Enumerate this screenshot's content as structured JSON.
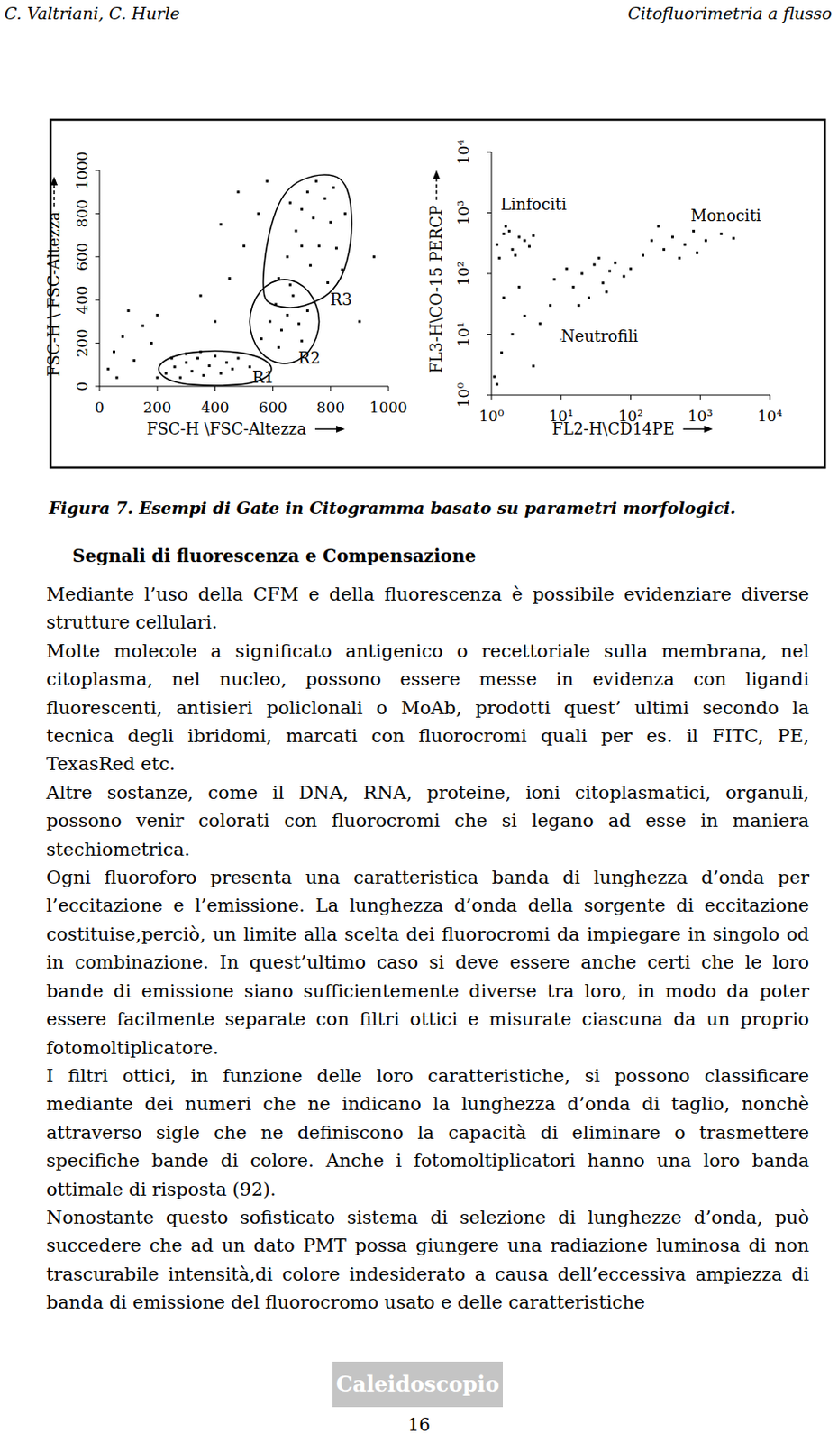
{
  "header": {
    "authors": "C. Valtriani, C. Hurle",
    "title": "Citofluorimetria a flusso"
  },
  "chart_data": [
    {
      "type": "scatter",
      "x_label": "FSC-H \\FSC-Altezza",
      "y_label": "FSC-H \\ FSC-Altezza",
      "xlim": [
        0,
        1000
      ],
      "ylim": [
        0,
        1000
      ],
      "xticks": [
        0,
        200,
        400,
        600,
        800,
        1000
      ],
      "yticks": [
        0,
        200,
        400,
        600,
        800,
        1000
      ],
      "color": "#000000",
      "marker": "square",
      "x": [
        230,
        260,
        280,
        300,
        320,
        340,
        360,
        380,
        400,
        420,
        440,
        460,
        300,
        350,
        250,
        480,
        520,
        200,
        30,
        50,
        80,
        120,
        150,
        100,
        180,
        60,
        200,
        560,
        590,
        610,
        630,
        650,
        670,
        690,
        700,
        620,
        720,
        660,
        620,
        650,
        680,
        700,
        720,
        750,
        780,
        800,
        820,
        840,
        760,
        730,
        790,
        850,
        700,
        740,
        810,
        660,
        400,
        450,
        500,
        350,
        550,
        480,
        420,
        900,
        950,
        580
      ],
      "y": [
        60,
        90,
        40,
        110,
        70,
        130,
        50,
        95,
        140,
        60,
        110,
        80,
        150,
        160,
        130,
        130,
        90,
        40,
        80,
        160,
        230,
        120,
        280,
        350,
        200,
        40,
        330,
        220,
        300,
        380,
        260,
        330,
        420,
        290,
        210,
        180,
        350,
        470,
        500,
        600,
        720,
        820,
        900,
        950,
        870,
        760,
        640,
        540,
        650,
        560,
        480,
        800,
        650,
        780,
        920,
        850,
        300,
        500,
        650,
        420,
        800,
        900,
        750,
        300,
        600,
        950
      ],
      "gates": [
        {
          "label": "R1",
          "outline": [
            [
              190,
              80
            ],
            [
              250,
              145
            ],
            [
              400,
              170
            ],
            [
              550,
              145
            ],
            [
              610,
              80
            ],
            [
              550,
              15
            ],
            [
              400,
              0
            ],
            [
              250,
              15
            ]
          ]
        },
        {
          "label": "R2",
          "outline": [
            [
              510,
              300
            ],
            [
              550,
              450
            ],
            [
              640,
              510
            ],
            [
              730,
              450
            ],
            [
              770,
              300
            ],
            [
              730,
              150
            ],
            [
              640,
              90
            ],
            [
              550,
              150
            ]
          ]
        },
        {
          "label": "R3",
          "outline": [
            [
              560,
              420
            ],
            [
              580,
              700
            ],
            [
              640,
              920
            ],
            [
              760,
              990
            ],
            [
              860,
              960
            ],
            [
              880,
              700
            ],
            [
              830,
              450
            ],
            [
              700,
              360
            ],
            [
              600,
              370
            ]
          ]
        }
      ]
    },
    {
      "type": "scatter",
      "x_label": "FL2-H\\CD14PE",
      "y_label": "FL3-H\\CO-15 PERCP",
      "log": true,
      "xlim": [
        1,
        10000
      ],
      "ylim": [
        1,
        10000
      ],
      "xticks": [
        {
          "value": 1,
          "label": "10⁰"
        },
        {
          "value": 10,
          "label": "10¹"
        },
        {
          "value": 100,
          "label": "10²"
        },
        {
          "value": 1000,
          "label": "10³"
        },
        {
          "value": 10000,
          "label": "10⁴"
        }
      ],
      "yticks": [
        {
          "value": 1,
          "label": "10⁰"
        },
        {
          "value": 10,
          "label": "10¹"
        },
        {
          "value": 100,
          "label": "10²"
        },
        {
          "value": 1000,
          "label": "10³"
        },
        {
          "value": 10000,
          "label": "10⁴"
        }
      ],
      "color": "#000000",
      "marker": "square",
      "x": [
        1.2,
        1.5,
        2,
        2.5,
        3,
        1.8,
        2.2,
        3.5,
        1.3,
        4,
        1.6,
        8,
        12,
        15,
        20,
        30,
        40,
        50,
        25,
        60,
        80,
        35,
        18,
        100,
        45,
        150,
        200,
        300,
        400,
        600,
        800,
        1200,
        2000,
        500,
        250,
        900,
        3000,
        1.1,
        1.4,
        2,
        3,
        1.5,
        5,
        4,
        1.2,
        7,
        10,
        2.5
      ],
      "y": [
        300,
        450,
        250,
        400,
        350,
        500,
        200,
        280,
        180,
        420,
        600,
        80,
        120,
        60,
        100,
        140,
        70,
        110,
        40,
        150,
        90,
        180,
        30,
        120,
        50,
        200,
        350,
        250,
        400,
        300,
        500,
        350,
        450,
        180,
        600,
        220,
        380,
        2,
        5,
        10,
        20,
        40,
        15,
        3,
        1.5,
        30,
        8,
        60
      ],
      "annotations": [
        {
          "text": "Linfociti",
          "x": 1.35,
          "y": 1120
        },
        {
          "text": "Monociti",
          "x": 730,
          "y": 740
        },
        {
          "text": "Neutrofili",
          "x": 10,
          "y": 7.5
        }
      ]
    }
  ],
  "figure_caption": "Figura 7. Esempi di Gate in Citogramma basato su parametri morfologici.",
  "section": {
    "heading": "Segnali di fluorescenza e Compensazione",
    "paragraphs": [
      "Mediante l’uso della CFM e della fluorescenza è possibile evidenziare diverse strutture cellulari.",
      "Molte molecole a significato antigenico o recettoriale sulla membrana, nel citoplasma, nel nucleo, possono essere messe in evidenza con ligandi fluorescenti, antisieri policlonali o MoAb, prodotti quest’ ultimi secondo la tecnica degli ibridomi, marcati con fluorocromi quali per es. il FITC, PE, TexasRed etc.",
      "Altre sostanze, come il DNA, RNA, proteine, ioni citoplasmatici, organuli, possono venir colorati con fluorocromi che si legano ad esse in maniera stechiometrica.",
      "Ogni fluoroforo presenta una caratteristica banda di lunghezza d’onda per l’eccitazione e l’emissione. La lunghezza d’onda della sorgente di eccitazione costituise,perciò, un limite alla scelta dei fluorocromi da impiegare in singolo od in combinazione. In quest’ultimo caso si deve essere anche certi che le loro bande di emissione siano sufficientemente diverse tra loro, in modo da poter essere facilmente separate con filtri ottici e misurate ciascuna da un proprio fotomoltiplicatore.",
      "I filtri ottici, in funzione delle loro caratteristiche, si possono classificare mediante dei numeri che ne indicano la lunghezza d’onda di taglio, nonchè attraverso sigle che ne definiscono la capacità di eliminare o trasmettere specifiche bande di colore. Anche i fotomoltiplicatori hanno una loro banda ottimale di risposta (92).",
      "Nonostante questo sofisticato sistema di selezione di lunghezze d’onda, può succedere che ad un dato PMT possa giungere una radiazione luminosa di non trascurabile intensità,di colore indesiderato a causa dell’eccessiva ampiezza di banda di emissione del fluorocromo usato e delle caratteristiche"
    ]
  },
  "footer": {
    "badge": "Caleidoscopio",
    "page": 16
  }
}
